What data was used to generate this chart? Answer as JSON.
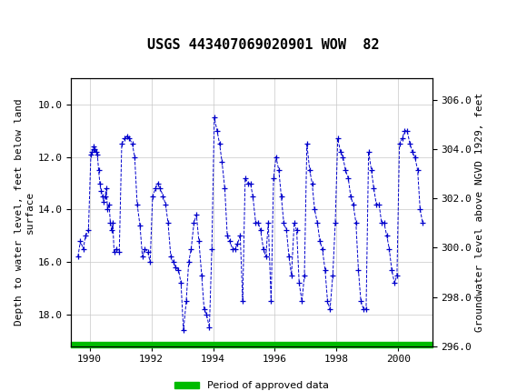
{
  "title": "USGS 443407069020901 WOW  82",
  "ylabel_left": "Depth to water level, feet below land\nsurface",
  "ylabel_right": "Groundwater level above NGVD 1929, feet",
  "ylim_left": [
    19.2,
    9.0
  ],
  "ylim_right": [
    296.0,
    306.4
  ],
  "xlim": [
    1989.4,
    2001.1
  ],
  "yticks_left": [
    10.0,
    12.0,
    14.0,
    16.0,
    18.0
  ],
  "yticks_right": [
    296.0,
    298.0,
    300.0,
    302.0,
    304.0,
    306.0
  ],
  "xticks": [
    1990,
    1992,
    1994,
    1996,
    1998,
    2000
  ],
  "header_color": "#006633",
  "line_color": "#0000cc",
  "approved_color": "#00bb00",
  "background_color": "#ffffff",
  "grid_color": "#c8c8c8",
  "data_x": [
    1989.62,
    1989.7,
    1989.79,
    1989.87,
    1989.96,
    1990.04,
    1990.08,
    1990.12,
    1990.13,
    1990.17,
    1990.21,
    1990.25,
    1990.29,
    1990.33,
    1990.37,
    1990.42,
    1990.46,
    1990.5,
    1990.54,
    1990.58,
    1990.63,
    1990.67,
    1990.71,
    1990.75,
    1990.79,
    1990.87,
    1990.96,
    1991.04,
    1991.13,
    1991.21,
    1991.29,
    1991.38,
    1991.46,
    1991.54,
    1991.63,
    1991.71,
    1991.79,
    1991.88,
    1991.96,
    1992.04,
    1992.13,
    1992.21,
    1992.29,
    1992.38,
    1992.46,
    1992.54,
    1992.63,
    1992.71,
    1992.79,
    1992.88,
    1992.96,
    1993.04,
    1993.13,
    1993.21,
    1993.29,
    1993.38,
    1993.46,
    1993.54,
    1993.63,
    1993.71,
    1993.79,
    1993.88,
    1993.96,
    1994.04,
    1994.13,
    1994.21,
    1994.29,
    1994.38,
    1994.46,
    1994.54,
    1994.63,
    1994.71,
    1994.79,
    1994.88,
    1994.96,
    1995.04,
    1995.13,
    1995.21,
    1995.29,
    1995.38,
    1995.46,
    1995.54,
    1995.63,
    1995.71,
    1995.79,
    1995.88,
    1995.96,
    1996.04,
    1996.13,
    1996.21,
    1996.29,
    1996.38,
    1996.46,
    1996.54,
    1996.63,
    1996.71,
    1996.79,
    1996.88,
    1996.96,
    1997.04,
    1997.13,
    1997.21,
    1997.29,
    1997.38,
    1997.46,
    1997.54,
    1997.63,
    1997.71,
    1997.79,
    1997.88,
    1997.96,
    1998.04,
    1998.13,
    1998.21,
    1998.29,
    1998.38,
    1998.46,
    1998.54,
    1998.63,
    1998.71,
    1998.79,
    1998.88,
    1998.96,
    1999.04,
    1999.13,
    1999.21,
    1999.29,
    1999.38,
    1999.46,
    1999.54,
    1999.63,
    1999.71,
    1999.79,
    1999.88,
    1999.96,
    2000.04,
    2000.13,
    2000.21,
    2000.29,
    2000.38,
    2000.46,
    2000.54,
    2000.63,
    2000.71,
    2000.79
  ],
  "data_y": [
    15.8,
    15.2,
    15.5,
    15.0,
    14.8,
    11.9,
    11.8,
    11.7,
    11.6,
    11.7,
    11.8,
    11.9,
    12.5,
    13.0,
    13.3,
    13.5,
    13.7,
    13.5,
    13.2,
    14.0,
    13.8,
    14.5,
    14.8,
    14.5,
    15.6,
    15.5,
    15.6,
    11.5,
    11.3,
    11.2,
    11.3,
    11.5,
    12.0,
    13.8,
    14.6,
    15.8,
    15.5,
    15.6,
    16.0,
    13.5,
    13.2,
    13.0,
    13.2,
    13.5,
    13.8,
    14.5,
    15.8,
    16.0,
    16.2,
    16.3,
    16.8,
    18.6,
    17.5,
    16.0,
    15.5,
    14.5,
    14.2,
    15.2,
    16.5,
    17.8,
    18.0,
    18.5,
    15.5,
    10.5,
    11.0,
    11.5,
    12.2,
    13.2,
    15.0,
    15.2,
    15.5,
    15.5,
    15.3,
    15.0,
    17.5,
    12.8,
    13.0,
    13.0,
    13.5,
    14.5,
    14.5,
    14.8,
    15.5,
    15.8,
    14.5,
    17.5,
    12.8,
    12.0,
    12.5,
    13.5,
    14.5,
    14.8,
    15.8,
    16.5,
    14.5,
    14.8,
    16.8,
    17.5,
    16.5,
    11.5,
    12.5,
    13.0,
    14.0,
    14.5,
    15.2,
    15.5,
    16.3,
    17.5,
    17.8,
    16.5,
    14.5,
    11.3,
    11.8,
    12.0,
    12.5,
    12.8,
    13.5,
    13.8,
    14.5,
    16.3,
    17.5,
    17.8,
    17.8,
    11.8,
    12.5,
    13.2,
    13.8,
    13.8,
    14.5,
    14.5,
    15.0,
    15.5,
    16.3,
    16.8,
    16.5,
    11.5,
    11.3,
    11.0,
    11.0,
    11.5,
    11.8,
    12.0,
    12.5,
    14.0,
    14.5
  ],
  "approved_bar_xstart": 1989.4,
  "approved_bar_xend": 2001.1,
  "land_surface_elevation": 315.9
}
